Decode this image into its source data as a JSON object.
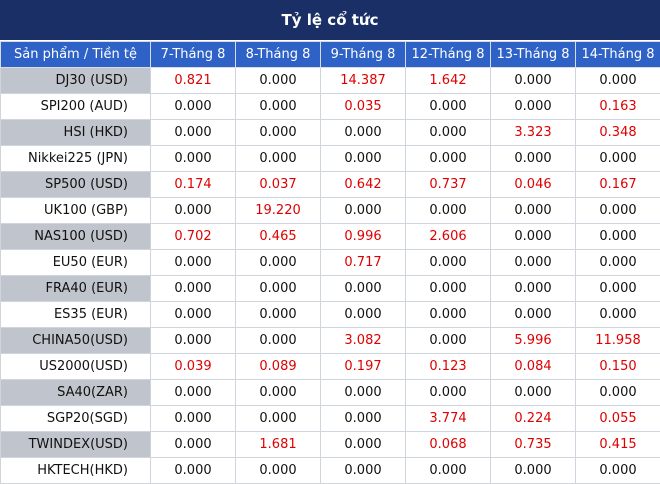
{
  "title": "Tỷ lệ cổ tức",
  "header": [
    "Sản phẩm / Tiền tệ",
    "7-Tháng 8",
    "8-Tháng 8",
    "9-Tháng 8",
    "12-Tháng 8",
    "13-Tháng 8",
    "14-Tháng 8"
  ],
  "rows": [
    {
      "product": "DJ30 (USD)",
      "values": [
        "0.821",
        "0.000",
        "14.387",
        "1.642",
        "0.000",
        "0.000"
      ]
    },
    {
      "product": "SPI200 (AUD)",
      "values": [
        "0.000",
        "0.000",
        "0.035",
        "0.000",
        "0.000",
        "0.163"
      ]
    },
    {
      "product": "HSI (HKD)",
      "values": [
        "0.000",
        "0.000",
        "0.000",
        "0.000",
        "3.323",
        "0.348"
      ]
    },
    {
      "product": "Nikkei225 (JPN)",
      "values": [
        "0.000",
        "0.000",
        "0.000",
        "0.000",
        "0.000",
        "0.000"
      ]
    },
    {
      "product": "SP500 (USD)",
      "values": [
        "0.174",
        "0.037",
        "0.642",
        "0.737",
        "0.046",
        "0.167"
      ]
    },
    {
      "product": "UK100 (GBP)",
      "values": [
        "0.000",
        "19.220",
        "0.000",
        "0.000",
        "0.000",
        "0.000"
      ]
    },
    {
      "product": "NAS100 (USD)",
      "values": [
        "0.702",
        "0.465",
        "0.996",
        "2.606",
        "0.000",
        "0.000"
      ]
    },
    {
      "product": "EU50 (EUR)",
      "values": [
        "0.000",
        "0.000",
        "0.717",
        "0.000",
        "0.000",
        "0.000"
      ]
    },
    {
      "product": "FRA40 (EUR)",
      "values": [
        "0.000",
        "0.000",
        "0.000",
        "0.000",
        "0.000",
        "0.000"
      ]
    },
    {
      "product": "ES35 (EUR)",
      "values": [
        "0.000",
        "0.000",
        "0.000",
        "0.000",
        "0.000",
        "0.000"
      ]
    },
    {
      "product": "CHINA50(USD)",
      "values": [
        "0.000",
        "0.000",
        "3.082",
        "0.000",
        "5.996",
        "11.958"
      ]
    },
    {
      "product": "US2000(USD)",
      "values": [
        "0.039",
        "0.089",
        "0.197",
        "0.123",
        "0.084",
        "0.150"
      ]
    },
    {
      "product": "SA40(ZAR)",
      "values": [
        "0.000",
        "0.000",
        "0.000",
        "0.000",
        "0.000",
        "0.000"
      ]
    },
    {
      "product": "SGP20(SGD)",
      "values": [
        "0.000",
        "0.000",
        "0.000",
        "3.774",
        "0.224",
        "0.055"
      ]
    },
    {
      "product": "TWINDEX(USD)",
      "values": [
        "0.000",
        "1.681",
        "0.000",
        "0.068",
        "0.735",
        "0.415"
      ]
    },
    {
      "product": "HKTECH(HKD)",
      "values": [
        "0.000",
        "0.000",
        "0.000",
        "0.000",
        "0.000",
        "0.000"
      ]
    }
  ],
  "colors": {
    "title_bg": "#1a2f66",
    "header_bg": "#2e62c7",
    "stripe": "#c0c4cc",
    "nonzero_text": "#e00000"
  }
}
